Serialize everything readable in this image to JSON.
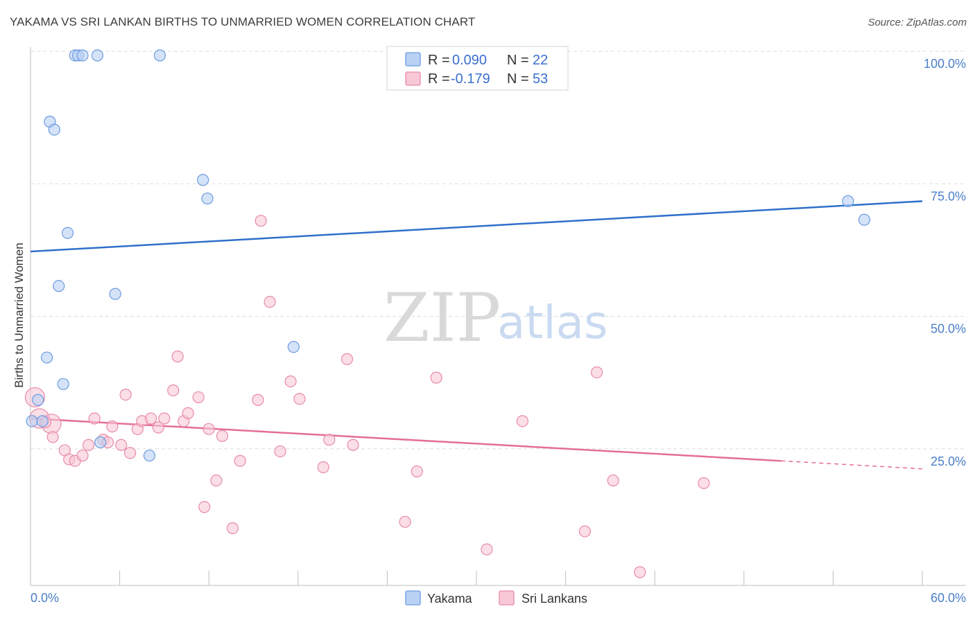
{
  "title": "YAKAMA VS SRI LANKAN BIRTHS TO UNMARRIED WOMEN CORRELATION CHART",
  "source": "Source: ZipAtlas.com",
  "watermark": {
    "zip": "ZIP",
    "atlas": "atlas"
  },
  "colors": {
    "yakama_fill": "#b9d1f3",
    "yakama_stroke": "#6b9be0",
    "yakama_line": "#2f6fcb",
    "srilankan_fill": "#f8c8d6",
    "srilankan_stroke": "#e88aa8",
    "srilankan_line": "#e46d96",
    "tick_text": "#4a7fc8",
    "grid": "#dddddd"
  },
  "legend": {
    "rows": [
      {
        "r_label": "R =",
        "r_value": "0.090",
        "n_label": "N =",
        "n_value": "22"
      },
      {
        "r_label": "R =",
        "r_value": "-0.179",
        "n_label": "N =",
        "n_value": "53"
      }
    ]
  },
  "bottom_legend": [
    "Yakama",
    "Sri Lankans"
  ],
  "chart_data": {
    "type": "scatter",
    "title": "YAKAMA VS SRI LANKAN BIRTHS TO UNMARRIED WOMEN CORRELATION CHART",
    "xlabel": "",
    "ylabel": "Births to Unmarried Women",
    "xlim": [
      0,
      60
    ],
    "ylim": [
      0,
      102
    ],
    "x_tick_labels": [
      "0.0%",
      "60.0%"
    ],
    "y_ticks": [
      25,
      50,
      75,
      100
    ],
    "y_tick_labels": [
      "25.0%",
      "50.0%",
      "75.0%",
      "100.0%"
    ],
    "series": [
      {
        "name": "Yakama",
        "R": 0.09,
        "N": 22,
        "trend": {
          "x": [
            0,
            60
          ],
          "y": [
            63.0,
            72.5
          ],
          "dashed_from": null
        },
        "points": [
          {
            "x": 3.0,
            "y": 100
          },
          {
            "x": 3.2,
            "y": 100
          },
          {
            "x": 3.5,
            "y": 100
          },
          {
            "x": 4.5,
            "y": 100
          },
          {
            "x": 8.7,
            "y": 100
          },
          {
            "x": 1.3,
            "y": 87.5
          },
          {
            "x": 1.6,
            "y": 86
          },
          {
            "x": 11.6,
            "y": 76.5
          },
          {
            "x": 11.9,
            "y": 73
          },
          {
            "x": 2.5,
            "y": 66.5
          },
          {
            "x": 1.9,
            "y": 56.5
          },
          {
            "x": 5.7,
            "y": 55
          },
          {
            "x": 17.7,
            "y": 45
          },
          {
            "x": 1.1,
            "y": 43
          },
          {
            "x": 2.2,
            "y": 38
          },
          {
            "x": 0.5,
            "y": 35
          },
          {
            "x": 0.1,
            "y": 31
          },
          {
            "x": 0.8,
            "y": 31
          },
          {
            "x": 4.7,
            "y": 27
          },
          {
            "x": 8.0,
            "y": 24.5
          },
          {
            "x": 55.0,
            "y": 72.5
          },
          {
            "x": 56.1,
            "y": 69
          }
        ]
      },
      {
        "name": "Sri Lankans",
        "R": -0.179,
        "N": 53,
        "trend": {
          "x": [
            0,
            60
          ],
          "y": [
            31.5,
            22.0
          ],
          "dashed_from": 50.5
        },
        "points": [
          {
            "x": 0.3,
            "y": 35.5,
            "big": true
          },
          {
            "x": 0.6,
            "y": 31.5,
            "big": true
          },
          {
            "x": 1.4,
            "y": 30.5,
            "big": true
          },
          {
            "x": 1.0,
            "y": 30.8
          },
          {
            "x": 1.5,
            "y": 28
          },
          {
            "x": 2.3,
            "y": 25.5
          },
          {
            "x": 2.6,
            "y": 23.8
          },
          {
            "x": 3.0,
            "y": 23.5
          },
          {
            "x": 3.5,
            "y": 24.5
          },
          {
            "x": 3.9,
            "y": 26.5
          },
          {
            "x": 4.3,
            "y": 31.5
          },
          {
            "x": 4.9,
            "y": 27.5
          },
          {
            "x": 5.2,
            "y": 27
          },
          {
            "x": 5.5,
            "y": 30
          },
          {
            "x": 6.1,
            "y": 26.5
          },
          {
            "x": 6.4,
            "y": 36
          },
          {
            "x": 6.7,
            "y": 25
          },
          {
            "x": 7.2,
            "y": 29.5
          },
          {
            "x": 7.5,
            "y": 31
          },
          {
            "x": 8.1,
            "y": 31.5
          },
          {
            "x": 8.6,
            "y": 29.8
          },
          {
            "x": 9.0,
            "y": 31.5
          },
          {
            "x": 9.6,
            "y": 36.8
          },
          {
            "x": 9.9,
            "y": 43.2
          },
          {
            "x": 10.3,
            "y": 31
          },
          {
            "x": 10.6,
            "y": 32.5
          },
          {
            "x": 11.3,
            "y": 35.5
          },
          {
            "x": 11.7,
            "y": 14.8
          },
          {
            "x": 12.0,
            "y": 29.5
          },
          {
            "x": 12.5,
            "y": 19.8
          },
          {
            "x": 12.9,
            "y": 28.2
          },
          {
            "x": 13.6,
            "y": 10.8
          },
          {
            "x": 14.1,
            "y": 23.5
          },
          {
            "x": 15.3,
            "y": 35
          },
          {
            "x": 15.5,
            "y": 68.8
          },
          {
            "x": 16.1,
            "y": 53.5
          },
          {
            "x": 16.8,
            "y": 25.3
          },
          {
            "x": 17.5,
            "y": 38.5
          },
          {
            "x": 18.1,
            "y": 35.2
          },
          {
            "x": 19.7,
            "y": 22.3
          },
          {
            "x": 20.1,
            "y": 27.5
          },
          {
            "x": 21.3,
            "y": 42.7
          },
          {
            "x": 21.7,
            "y": 26.5
          },
          {
            "x": 25.2,
            "y": 12
          },
          {
            "x": 26.0,
            "y": 21.5
          },
          {
            "x": 27.3,
            "y": 39.2
          },
          {
            "x": 30.7,
            "y": 6.8
          },
          {
            "x": 33.1,
            "y": 31
          },
          {
            "x": 37.3,
            "y": 10.2
          },
          {
            "x": 38.1,
            "y": 40.2
          },
          {
            "x": 39.2,
            "y": 19.8
          },
          {
            "x": 45.3,
            "y": 19.3
          },
          {
            "x": 41.0,
            "y": 2.5
          }
        ]
      }
    ]
  }
}
